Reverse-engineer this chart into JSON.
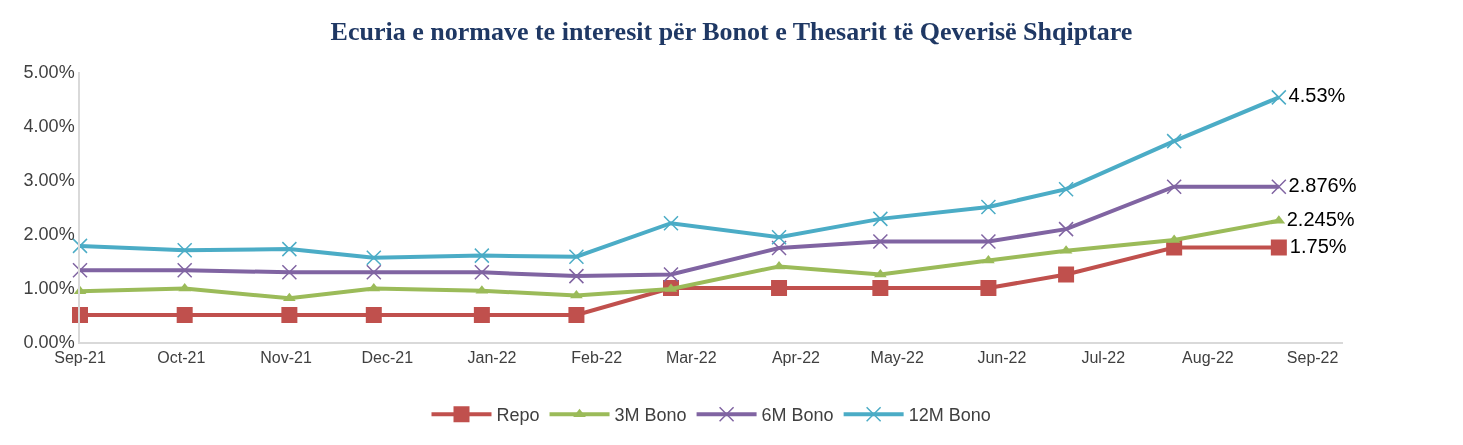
{
  "chart_data": {
    "type": "line",
    "title": "Ecuria e normave te interesit për Bonot e Thesarit të Qeverisë Shqiptare",
    "x": [
      "2021-09-01",
      "2021-10-02",
      "2021-11-02",
      "2021-11-27",
      "2021-12-29",
      "2022-01-26",
      "2022-02-23",
      "2022-03-27",
      "2022-04-26",
      "2022-05-28",
      "2022-06-20",
      "2022-07-22",
      "2022-08-22"
    ],
    "series": [
      {
        "name": "Repo",
        "color": "#c0504d",
        "marker": "square",
        "values": [
          0.5,
          0.5,
          0.5,
          0.5,
          0.5,
          0.5,
          1.0,
          1.0,
          1.0,
          1.0,
          1.25,
          1.75,
          1.75
        ],
        "value_labels": [
          null,
          null,
          null,
          null,
          null,
          null,
          null,
          null,
          null,
          null,
          null,
          null,
          "1.75%"
        ]
      },
      {
        "name": "3M Bono",
        "color": "#9bbb59",
        "marker": "triangle",
        "values": [
          0.94,
          0.99,
          0.81,
          0.99,
          0.95,
          0.86,
          0.98,
          1.4,
          1.25,
          1.51,
          1.69,
          1.89,
          2.245
        ],
        "value_labels": [
          null,
          null,
          null,
          null,
          null,
          null,
          null,
          null,
          null,
          null,
          null,
          null,
          "2.245%"
        ]
      },
      {
        "name": "6M Bono",
        "color": "#8064a2",
        "marker": "cross",
        "values": [
          1.33,
          1.33,
          1.29,
          1.29,
          1.29,
          1.22,
          1.25,
          1.74,
          1.86,
          1.86,
          2.09,
          2.876,
          2.876
        ],
        "value_labels": [
          null,
          null,
          null,
          null,
          null,
          null,
          null,
          null,
          null,
          null,
          null,
          null,
          "2.876%"
        ]
      },
      {
        "name": "12M Bono",
        "color": "#4bacc6",
        "marker": "cross",
        "values": [
          1.78,
          1.7,
          1.72,
          1.56,
          1.6,
          1.58,
          2.2,
          1.94,
          2.28,
          2.5,
          2.83,
          3.72,
          4.53
        ],
        "value_labels": [
          null,
          null,
          null,
          null,
          null,
          null,
          null,
          null,
          null,
          null,
          null,
          null,
          "4.53%"
        ]
      }
    ],
    "ylim": [
      0,
      5
    ],
    "yticks": [
      {
        "value": 0,
        "label": "0.00%"
      },
      {
        "value": 1,
        "label": "1.00%"
      },
      {
        "value": 2,
        "label": "2.00%"
      },
      {
        "value": 3,
        "label": "3.00%"
      },
      {
        "value": 4,
        "label": "4.00%"
      },
      {
        "value": 5,
        "label": "5.00%"
      }
    ],
    "xlim": [
      "2021-09-01",
      "2022-09-10"
    ],
    "xticks": [
      {
        "value": "2021-09-01",
        "label": "Sep-21"
      },
      {
        "value": "2021-10-01",
        "label": "Oct-21"
      },
      {
        "value": "2021-11-01",
        "label": "Nov-21"
      },
      {
        "value": "2021-12-01",
        "label": "Dec-21"
      },
      {
        "value": "2022-01-01",
        "label": "Jan-22"
      },
      {
        "value": "2022-02-01",
        "label": "Feb-22"
      },
      {
        "value": "2022-03-01",
        "label": "Mar-22"
      },
      {
        "value": "2022-04-01",
        "label": "Apr-22"
      },
      {
        "value": "2022-05-01",
        "label": "May-22"
      },
      {
        "value": "2022-06-01",
        "label": "Jun-22"
      },
      {
        "value": "2022-07-01",
        "label": "Jul-22"
      },
      {
        "value": "2022-08-01",
        "label": "Aug-22"
      },
      {
        "value": "2022-09-01",
        "label": "Sep-22"
      }
    ],
    "legend": "bottom",
    "line_style": "solid"
  }
}
